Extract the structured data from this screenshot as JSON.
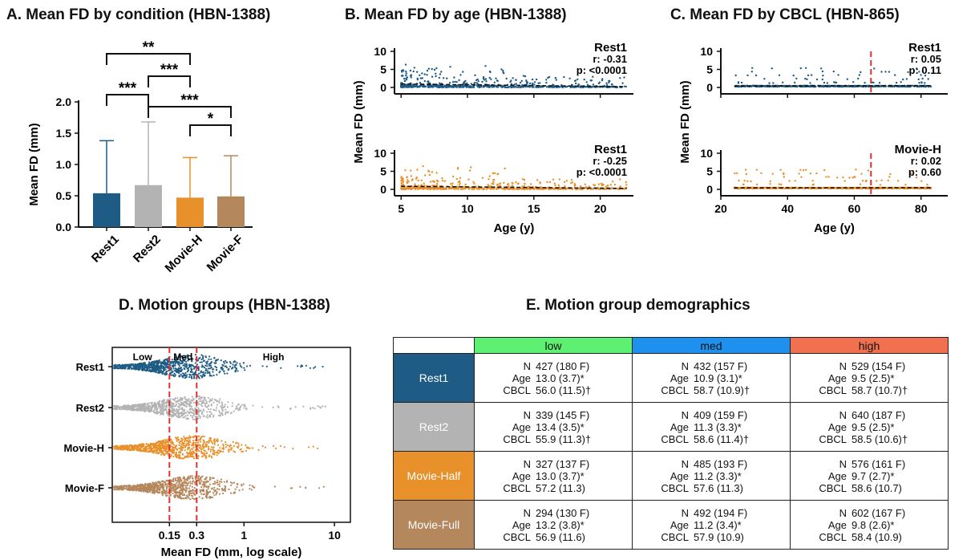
{
  "panels": {
    "A": {
      "title": "A. Mean FD by condition (HBN-1388)"
    },
    "B": {
      "title": "B. Mean FD by age (HBN-1388)"
    },
    "C": {
      "title": "C. Mean FD by CBCL (HBN-865)"
    },
    "D": {
      "title": "D. Motion groups (HBN-1388)"
    },
    "E": {
      "title": "E. Motion group demographics"
    }
  },
  "colors": {
    "rest1": "#1f5c85",
    "rest2": "#b3b3b3",
    "movie_h": "#e8902a",
    "movie_f": "#b5875c",
    "low": "#5ef072",
    "med": "#1e90ee",
    "high": "#f07050",
    "redline": "#e03030"
  },
  "chart_data": [
    {
      "type": "bar",
      "title": "A. Mean FD by condition (HBN-1388)",
      "categories": [
        "Rest1",
        "Rest2",
        "Movie-H",
        "Movie-F"
      ],
      "values": [
        0.54,
        0.67,
        0.47,
        0.49
      ],
      "error_upper": [
        1.38,
        1.68,
        1.11,
        1.14
      ],
      "ylabel": "Mean FD (mm)",
      "ylim": [
        0,
        2.0
      ],
      "yticks": [
        "0.0",
        "0.5",
        "1.0",
        "1.5",
        "2.0"
      ],
      "significance": [
        {
          "pair": [
            "Rest1",
            "Rest2"
          ],
          "label": "***"
        },
        {
          "pair": [
            "Rest1",
            "Movie-H"
          ],
          "label": "**"
        },
        {
          "pair": [
            "Rest2",
            "Movie-H"
          ],
          "label": "***"
        },
        {
          "pair": [
            "Rest2",
            "Movie-F"
          ],
          "label": "***"
        },
        {
          "pair": [
            "Movie-H",
            "Movie-F"
          ],
          "label": "*"
        }
      ]
    },
    {
      "type": "scatter",
      "title": "B. Mean FD by age (HBN-1388)",
      "xlabel": "Age (y)",
      "ylabel": "Mean FD (mm)",
      "xlim": [
        4.5,
        22.5
      ],
      "xticks": [
        "5",
        "10",
        "15",
        "20"
      ],
      "yticks": [
        "0",
        "5",
        "10"
      ],
      "subplots": [
        {
          "annotation": [
            "Rest1",
            "r: -0.31",
            "p: <0.0001"
          ],
          "fit": [
            [
              5,
              0.95
            ],
            [
              22,
              0.2
            ]
          ]
        },
        {
          "annotation": [
            "Rest1",
            "r: -0.25",
            "p: <0.0001"
          ],
          "fit": [
            [
              5,
              0.85
            ],
            [
              22,
              0.25
            ]
          ]
        }
      ]
    },
    {
      "type": "scatter",
      "title": "C. Mean FD by CBCL (HBN-865)",
      "xlabel": "Age (y)",
      "ylabel": "Mean FD (mm)",
      "xlim": [
        20,
        88
      ],
      "xticks": [
        "20",
        "40",
        "60",
        "80"
      ],
      "yticks": [
        "0",
        "5",
        "10"
      ],
      "threshold_x": 65,
      "subplots": [
        {
          "annotation": [
            "Rest1",
            "r: 0.05",
            "p: 0.11"
          ],
          "fit": [
            [
              24,
              0.4
            ],
            [
              83,
              0.5
            ]
          ]
        },
        {
          "annotation": [
            "Movie-H",
            "r: 0.02",
            "p: 0.60"
          ],
          "fit": [
            [
              24,
              0.42
            ],
            [
              83,
              0.46
            ]
          ]
        }
      ]
    },
    {
      "type": "scatter",
      "title": "D. Motion groups (HBN-1388)",
      "xlabel": "Mean FD (mm, log scale)",
      "x_scale": "log",
      "xticks": [
        "0.15",
        "0.3",
        "1",
        "10"
      ],
      "categories": [
        "Rest1",
        "Rest2",
        "Movie-H",
        "Movie-F"
      ],
      "thresholds": [
        0.15,
        0.3
      ],
      "regions": [
        "Low",
        "Med",
        "High"
      ]
    },
    {
      "type": "table",
      "title": "E. Motion group demographics",
      "columns": [
        "low",
        "med",
        "high"
      ],
      "rows": [
        {
          "label": "Rest1",
          "cells": [
            {
              "N": "427 (180 F)",
              "Age": "13.0 (3.7)*",
              "CBCL": "56.0 (11.5)†"
            },
            {
              "N": "432 (157 F)",
              "Age": "10.9 (3.1)*",
              "CBCL": "58.7 (10.9)†"
            },
            {
              "N": "529 (154 F)",
              "Age": "9.5 (2.5)*",
              "CBCL": "58.7 (10.7)†"
            }
          ]
        },
        {
          "label": "Rest2",
          "cells": [
            {
              "N": "339 (145 F)",
              "Age": "13.4 (3.5)*",
              "CBCL": "55.9 (11.3)†"
            },
            {
              "N": "409 (159 F)",
              "Age": "11.3 (3.3)*",
              "CBCL": "58.6 (11.4)†"
            },
            {
              "N": "640 (187 F)",
              "Age": "9.5 (2.5)*",
              "CBCL": "58.5 (10.6)†"
            }
          ]
        },
        {
          "label": "Movie-Half",
          "cells": [
            {
              "N": "327 (137 F)",
              "Age": "13.0 (3.7)*",
              "CBCL": "57.2 (11.3)"
            },
            {
              "N": "485 (193 F)",
              "Age": "11.2 (3.3)*",
              "CBCL": "57.6 (11.3)"
            },
            {
              "N": "576 (161 F)",
              "Age": "9.7 (2.7)*",
              "CBCL": "58.6 (10.7)"
            }
          ]
        },
        {
          "label": "Movie-Full",
          "cells": [
            {
              "N": "294 (130 F)",
              "Age": "13.2 (3.8)*",
              "CBCL": "56.9 (11.6)"
            },
            {
              "N": "492 (194 F)",
              "Age": "11.2 (3.4)*",
              "CBCL": "57.9 (10.9)"
            },
            {
              "N": "602 (167 F)",
              "Age": "9.8 (2.6)*",
              "CBCL": "58.4 (10.9)"
            }
          ]
        }
      ]
    }
  ]
}
